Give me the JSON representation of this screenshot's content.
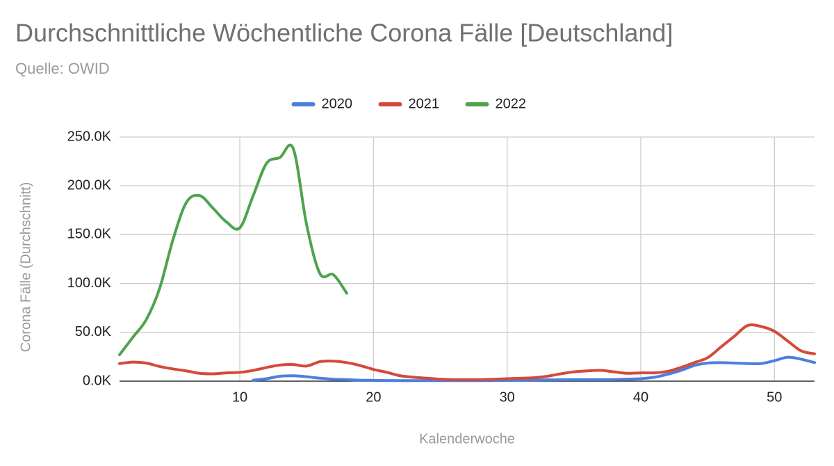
{
  "chart_data": {
    "type": "line",
    "title": "Durchschnittliche Wöchentliche Corona Fälle [Deutschland]",
    "subtitle": "Quelle: OWID",
    "x_label": "Kalenderwoche",
    "y_label": "Corona Fälle (Durchschnitt)",
    "x": [
      1,
      2,
      3,
      4,
      5,
      6,
      7,
      8,
      9,
      10,
      11,
      12,
      13,
      14,
      15,
      16,
      17,
      18,
      19,
      20,
      21,
      22,
      23,
      24,
      25,
      26,
      27,
      28,
      29,
      30,
      31,
      32,
      33,
      34,
      35,
      36,
      37,
      38,
      39,
      40,
      41,
      42,
      43,
      44,
      45,
      46,
      47,
      48,
      49,
      50,
      51,
      52,
      53
    ],
    "series": [
      {
        "name": "2020",
        "color": "#4a7fe0",
        "values": [
          null,
          null,
          null,
          null,
          null,
          null,
          null,
          null,
          null,
          null,
          1000,
          2500,
          5000,
          5500,
          4500,
          3000,
          2000,
          1500,
          1000,
          800,
          600,
          500,
          500,
          500,
          500,
          500,
          500,
          500,
          600,
          700,
          1000,
          1200,
          1300,
          1400,
          1500,
          1500,
          1500,
          1600,
          2000,
          2500,
          4000,
          7000,
          11000,
          16000,
          18500,
          19000,
          18500,
          18000,
          18000,
          21000,
          24500,
          22500,
          19000
        ]
      },
      {
        "name": "2021",
        "color": "#d44a3a",
        "values": [
          18000,
          19500,
          18500,
          15000,
          12500,
          10500,
          8000,
          7500,
          8500,
          9000,
          11000,
          14000,
          16500,
          17000,
          15500,
          20000,
          20500,
          19000,
          16000,
          12000,
          9000,
          5500,
          4000,
          3000,
          2000,
          1500,
          1500,
          1500,
          2000,
          2500,
          3000,
          3500,
          5000,
          7500,
          9500,
          10500,
          11000,
          9500,
          8000,
          8500,
          8500,
          10000,
          14000,
          19000,
          24000,
          35000,
          46000,
          57000,
          56000,
          51000,
          41000,
          31000,
          28000
        ]
      },
      {
        "name": "2022",
        "color": "#4fa34f",
        "values": [
          27000,
          45000,
          63000,
          95000,
          145000,
          183000,
          190000,
          177000,
          163000,
          157000,
          190000,
          223000,
          229000,
          238000,
          160000,
          110000,
          109000,
          90000,
          null,
          null,
          null,
          null,
          null,
          null,
          null,
          null,
          null,
          null,
          null,
          null,
          null,
          null,
          null,
          null,
          null,
          null,
          null,
          null,
          null,
          null,
          null,
          null,
          null,
          null,
          null,
          null,
          null,
          null,
          null,
          null,
          null,
          null,
          null
        ]
      }
    ],
    "xlim": [
      1,
      53
    ],
    "xticks": [
      10,
      20,
      30,
      40,
      50
    ],
    "ylim": [
      0,
      250000
    ],
    "yticks": [
      {
        "value": 0,
        "label": "0.0K"
      },
      {
        "value": 50000,
        "label": "50.0K"
      },
      {
        "value": 100000,
        "label": "100.0K"
      },
      {
        "value": 150000,
        "label": "150.0K"
      },
      {
        "value": 200000,
        "label": "200.0K"
      },
      {
        "value": 250000,
        "label": "250.0K"
      }
    ],
    "grid": true,
    "legend": "top"
  }
}
